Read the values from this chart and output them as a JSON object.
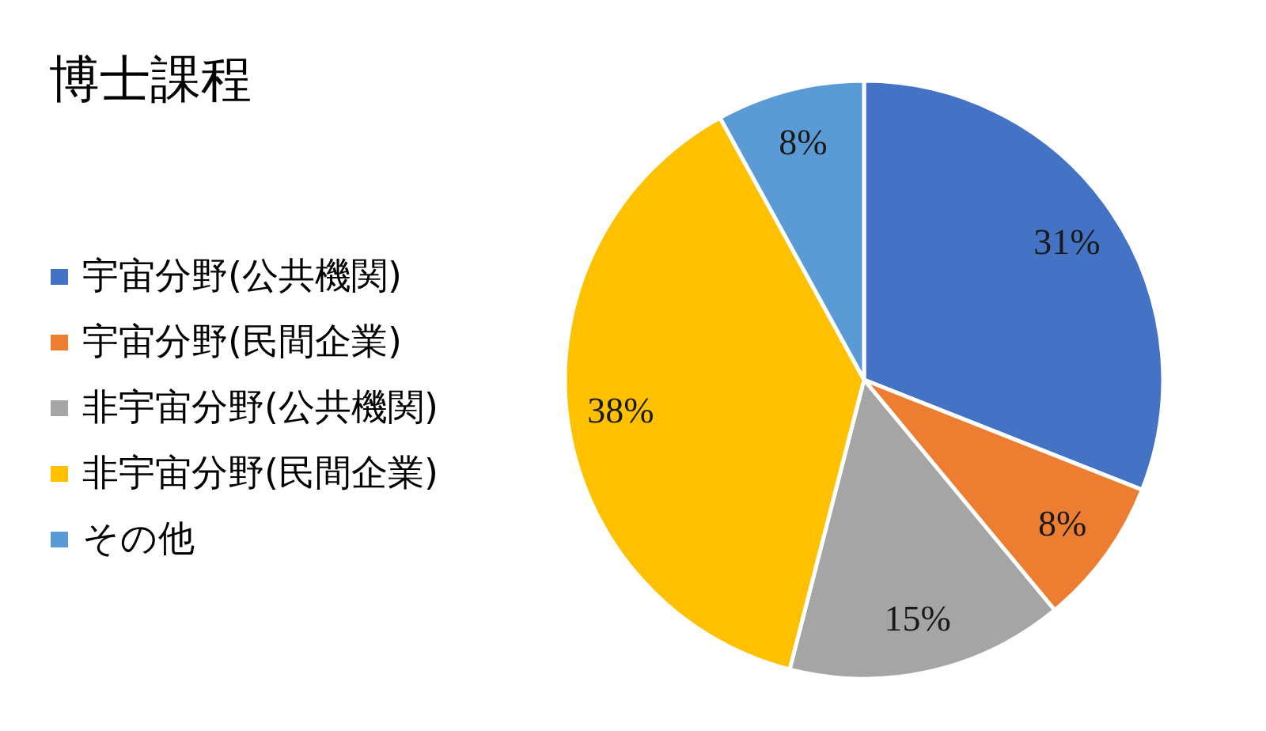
{
  "chart_data": {
    "type": "pie",
    "title": "博士課程",
    "categories": [
      "宇宙分野(公共機関)",
      "宇宙分野(民間企業)",
      "非宇宙分野(公共機関)",
      "非宇宙分野(民間企業)",
      "その他"
    ],
    "values": [
      31,
      8,
      15,
      38,
      8
    ],
    "colors": [
      "#4472c4",
      "#ed7d31",
      "#a5a5a5",
      "#ffc000",
      "#5b9bd5"
    ],
    "value_labels": [
      "31%",
      "8%",
      "15%",
      "38%",
      "8%"
    ],
    "legend": "left"
  }
}
